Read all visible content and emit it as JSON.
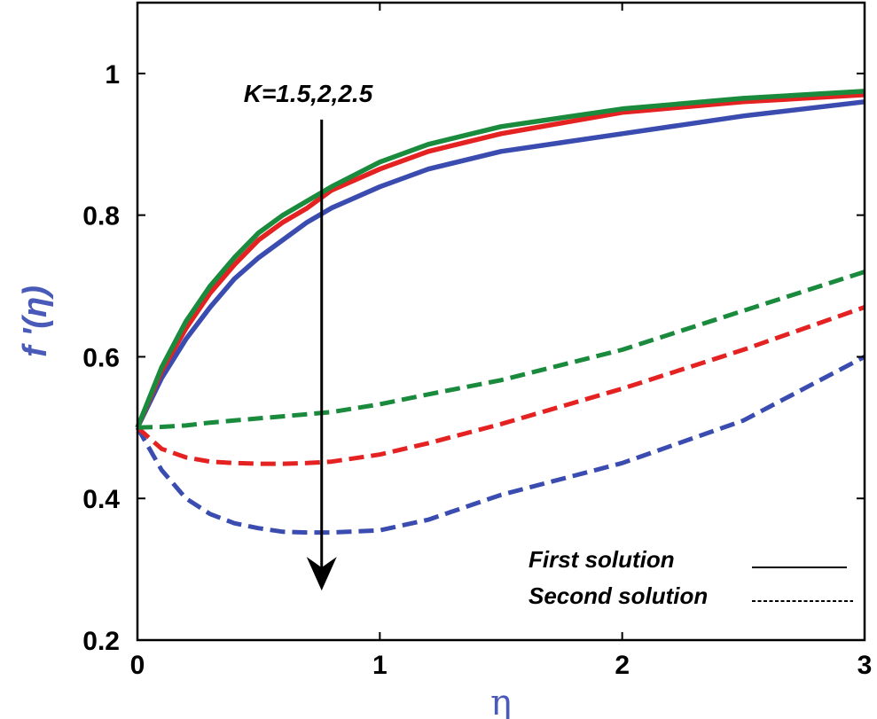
{
  "chart_data": {
    "type": "line",
    "xlabel": "η",
    "ylabel": "f '(η)",
    "xlim": [
      0,
      3
    ],
    "ylim": [
      0.2,
      1.1
    ],
    "xticks": [
      {
        "value": 0,
        "label": "0"
      },
      {
        "value": 1,
        "label": "1"
      },
      {
        "value": 2,
        "label": "2"
      },
      {
        "value": 3,
        "label": "3"
      }
    ],
    "yticks": [
      {
        "value": 0.2,
        "label": "0.2"
      },
      {
        "value": 0.4,
        "label": "0.4"
      },
      {
        "value": 0.6,
        "label": "0.6"
      },
      {
        "value": 0.8,
        "label": "0.8"
      },
      {
        "value": 1.0,
        "label": "1"
      }
    ],
    "annotation": {
      "text": "K=1.5,2,2.5",
      "arrow_x": 0.76,
      "arrow_from_y": 0.935,
      "arrow_to_y": 0.27
    },
    "legend": {
      "position": "bottom-right",
      "entries": [
        {
          "label": "First solution",
          "style": "solid"
        },
        {
          "label": "Second solution",
          "style": "dashed"
        }
      ]
    },
    "colors": {
      "blue": "#3b4cb0",
      "red": "#e52222",
      "green": "#1a8a3c",
      "axis": "#000000"
    },
    "series": [
      {
        "name": "K=1.5 first solution",
        "color": "#3b4cb0",
        "style": "solid",
        "x": [
          0,
          0.1,
          0.2,
          0.3,
          0.4,
          0.5,
          0.6,
          0.7,
          0.8,
          1.0,
          1.2,
          1.5,
          2.0,
          2.5,
          3.0
        ],
        "y": [
          0.5,
          0.57,
          0.625,
          0.67,
          0.71,
          0.74,
          0.765,
          0.79,
          0.81,
          0.84,
          0.865,
          0.89,
          0.915,
          0.94,
          0.96
        ]
      },
      {
        "name": "K=2 first solution",
        "color": "#e52222",
        "style": "solid",
        "x": [
          0,
          0.1,
          0.2,
          0.3,
          0.4,
          0.5,
          0.6,
          0.7,
          0.8,
          1.0,
          1.2,
          1.5,
          2.0,
          2.5,
          3.0
        ],
        "y": [
          0.5,
          0.58,
          0.64,
          0.69,
          0.73,
          0.765,
          0.79,
          0.81,
          0.835,
          0.865,
          0.89,
          0.915,
          0.945,
          0.96,
          0.97
        ]
      },
      {
        "name": "K=2.5 first solution",
        "color": "#1a8a3c",
        "style": "solid",
        "x": [
          0,
          0.1,
          0.2,
          0.3,
          0.4,
          0.5,
          0.6,
          0.7,
          0.8,
          1.0,
          1.2,
          1.5,
          2.0,
          2.5,
          3.0
        ],
        "y": [
          0.5,
          0.585,
          0.65,
          0.7,
          0.74,
          0.775,
          0.8,
          0.82,
          0.84,
          0.875,
          0.9,
          0.925,
          0.95,
          0.965,
          0.975
        ]
      },
      {
        "name": "K=1.5 second solution",
        "color": "#3b4cb0",
        "style": "dashed",
        "x": [
          0,
          0.1,
          0.2,
          0.3,
          0.4,
          0.5,
          0.6,
          0.7,
          0.8,
          1.0,
          1.2,
          1.5,
          2.0,
          2.5,
          3.0
        ],
        "y": [
          0.5,
          0.44,
          0.4,
          0.378,
          0.365,
          0.358,
          0.353,
          0.352,
          0.352,
          0.355,
          0.37,
          0.405,
          0.45,
          0.51,
          0.6
        ]
      },
      {
        "name": "K=2 second solution",
        "color": "#e52222",
        "style": "dashed",
        "x": [
          0,
          0.1,
          0.2,
          0.3,
          0.4,
          0.5,
          0.6,
          0.7,
          0.8,
          1.0,
          1.2,
          1.5,
          2.0,
          2.5,
          3.0
        ],
        "y": [
          0.5,
          0.47,
          0.458,
          0.452,
          0.45,
          0.449,
          0.449,
          0.45,
          0.452,
          0.462,
          0.478,
          0.505,
          0.555,
          0.61,
          0.67
        ]
      },
      {
        "name": "K=2.5 second solution",
        "color": "#1a8a3c",
        "style": "dashed",
        "x": [
          0,
          0.1,
          0.2,
          0.3,
          0.4,
          0.5,
          0.6,
          0.7,
          0.8,
          1.0,
          1.2,
          1.5,
          2.0,
          2.5,
          3.0
        ],
        "y": [
          0.5,
          0.501,
          0.503,
          0.507,
          0.51,
          0.513,
          0.516,
          0.519,
          0.522,
          0.533,
          0.547,
          0.567,
          0.61,
          0.665,
          0.72
        ]
      }
    ]
  }
}
